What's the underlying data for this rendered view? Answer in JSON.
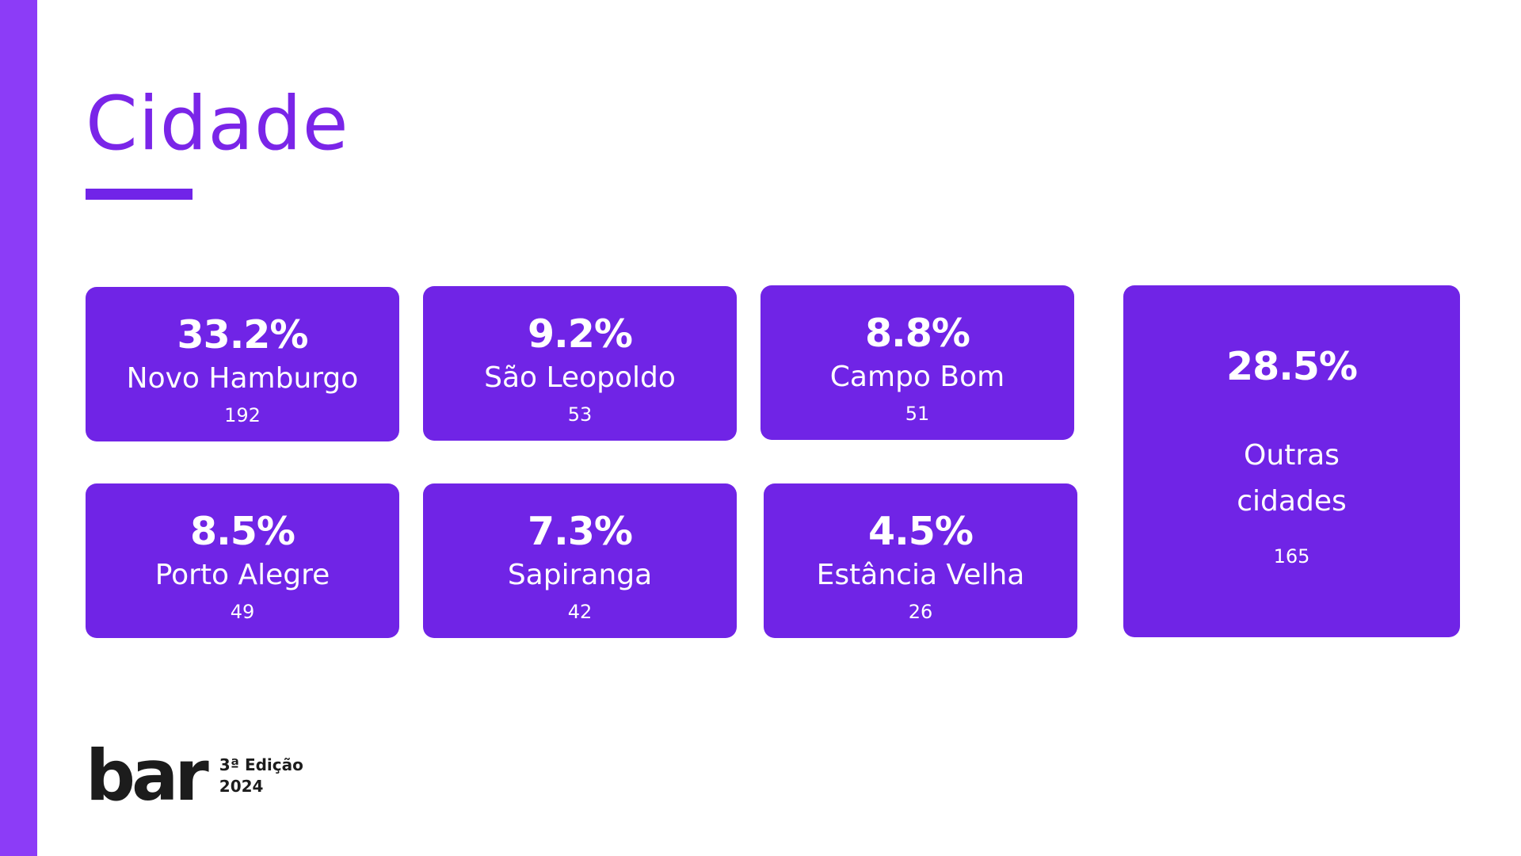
{
  "slide": {
    "title": "Cidade",
    "accent_color": "#7124e8",
    "side_bar_color": "#8c3cf7",
    "card_color": "#7024e6"
  },
  "cards": [
    {
      "percent": "33.2%",
      "city": "Novo Hamburgo",
      "count": "192"
    },
    {
      "percent": "9.2%",
      "city": "São Leopoldo",
      "count": "53"
    },
    {
      "percent": "8.8%",
      "city": "Campo Bom",
      "count": "51"
    },
    {
      "percent": "8.5%",
      "city": "Porto Alegre",
      "count": "49"
    },
    {
      "percent": "7.3%",
      "city": "Sapiranga",
      "count": "42"
    },
    {
      "percent": "4.5%",
      "city": "Estância Velha",
      "count": "26"
    }
  ],
  "others": {
    "percent": "28.5%",
    "label_line1": "Outras",
    "label_line2": "cidades",
    "count": "165"
  },
  "logo": {
    "word": "bar",
    "edition": "3ª Edição",
    "year": "2024"
  }
}
